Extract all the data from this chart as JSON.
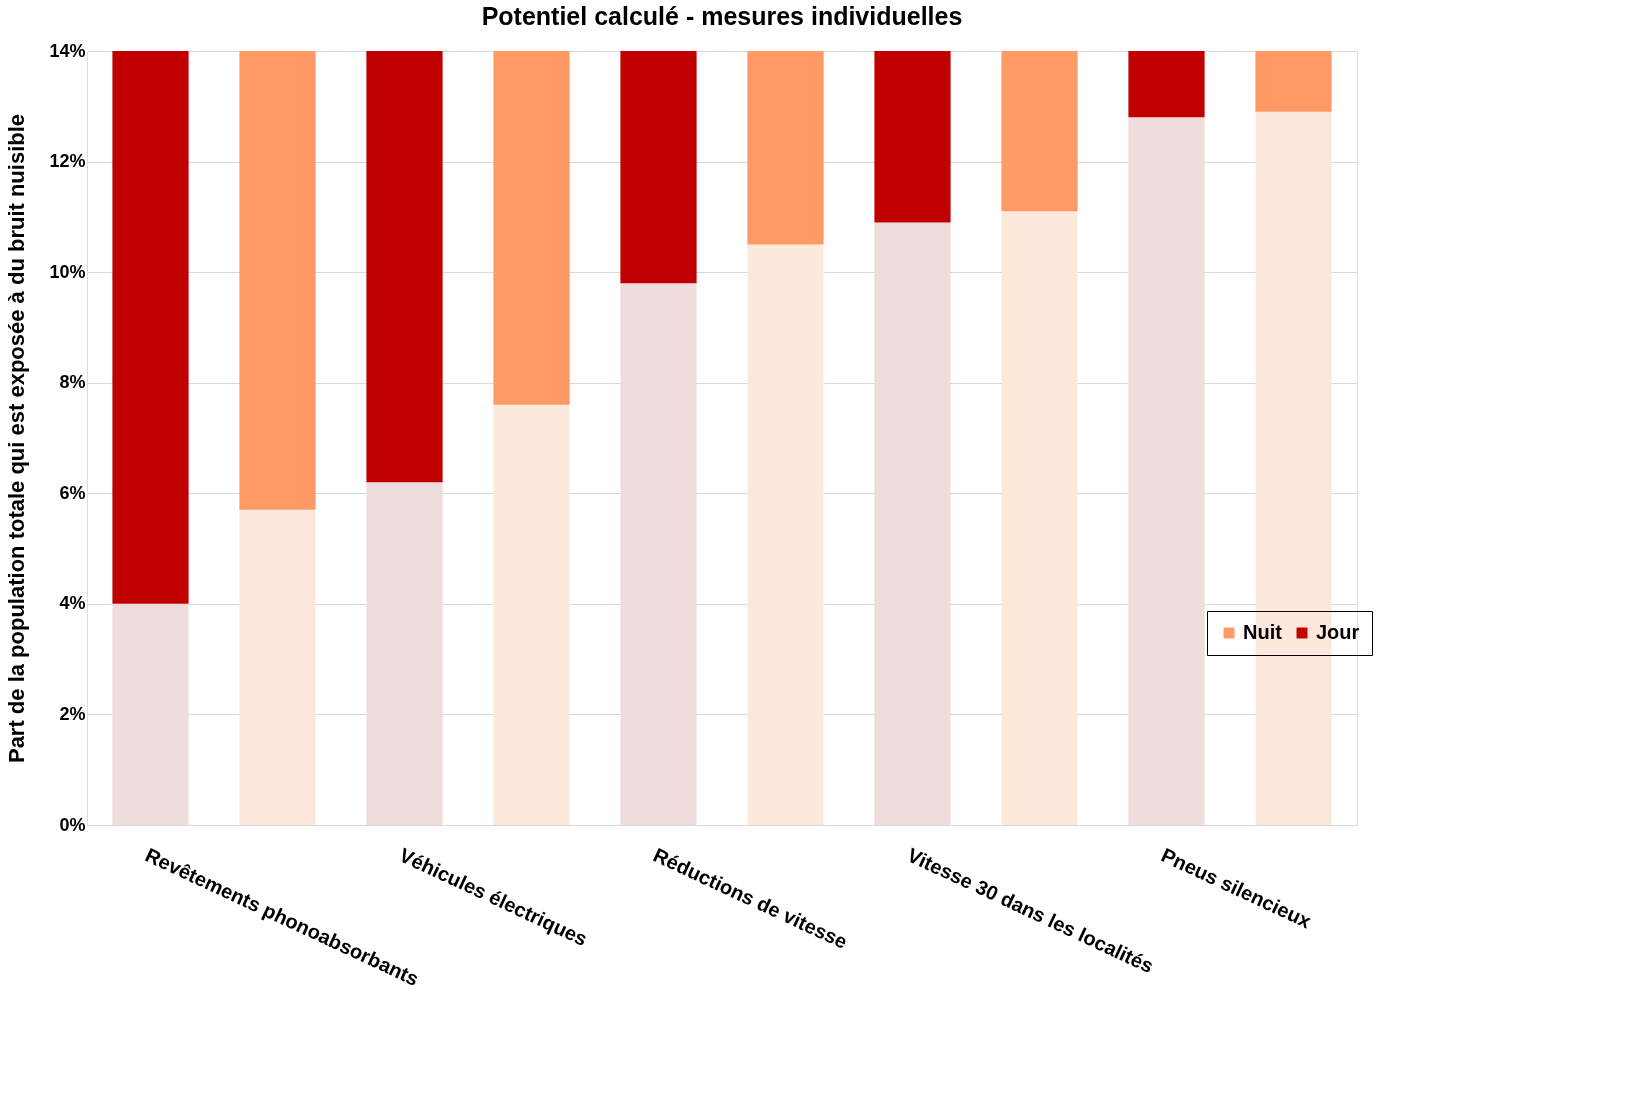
{
  "chart_data": {
    "type": "bar",
    "title": "Potentiel calculé -  mesures individuelles",
    "ylabel": "Part de la population totale qui est exposée à du bruit nuisible",
    "categories": [
      "Revêtements phonoabsorbants",
      null,
      "Véhicules électriques",
      null,
      "Réductions de vitesse",
      null,
      "Vitesse 30 dans les localités",
      null,
      "Pneus silencieux",
      null
    ],
    "stacked": true,
    "series": [
      {
        "color": "#efdcdc",
        "values": [
          4.0,
          null,
          6.2,
          null,
          9.8,
          null,
          10.9,
          null,
          12.8,
          null
        ]
      },
      {
        "name": "Jour",
        "color": "#c00000",
        "values": [
          10.0,
          null,
          7.8,
          null,
          4.2,
          null,
          3.1,
          null,
          1.2,
          null
        ]
      },
      {
        "color": "#fde9dc",
        "values": [
          null,
          5.7,
          null,
          7.6,
          null,
          10.5,
          null,
          11.1,
          null,
          12.9
        ]
      },
      {
        "name": "Nuit",
        "color": "#ff9966",
        "values": [
          null,
          8.3,
          null,
          6.4,
          null,
          3.5,
          null,
          2.9,
          null,
          1.1
        ]
      }
    ],
    "ylim": [
      0,
      14
    ],
    "yticks": [
      {
        "value": 0,
        "label": "0%"
      },
      {
        "value": 2,
        "label": "2%"
      },
      {
        "value": 4,
        "label": "4%"
      },
      {
        "value": 6,
        "label": "6%"
      },
      {
        "value": 8,
        "label": "8%"
      },
      {
        "value": 10,
        "label": "10%"
      },
      {
        "value": 12,
        "label": "12%"
      },
      {
        "value": 14,
        "label": "14%"
      }
    ],
    "grid": "y",
    "legend": "right"
  }
}
